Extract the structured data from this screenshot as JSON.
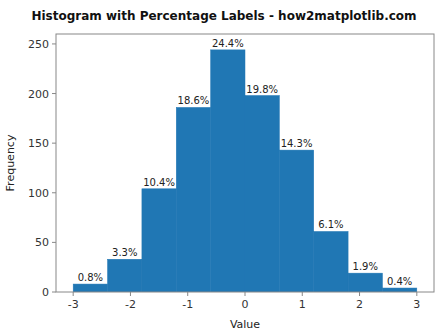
{
  "chart_data": {
    "type": "histogram",
    "title": "Histogram with Percentage Labels - how2matplotlib.com",
    "x_label": "Value",
    "y_label": "Frequency",
    "color": "#2077b4",
    "bins": [
      -3.0,
      -2.4,
      -1.8,
      -1.2,
      -0.6,
      0,
      0.6,
      1.2,
      1.8,
      2.4,
      3.0
    ],
    "values": [
      8,
      33,
      104,
      186,
      244,
      198,
      143,
      61,
      19,
      4
    ],
    "value_labels": [
      "0.8%",
      "3.3%",
      "10.4%",
      "18.6%",
      "24.4%",
      "19.8%",
      "14.3%",
      "6.1%",
      "1.9%",
      "0.4%"
    ],
    "data_labels": true,
    "xlim": [
      -3.3,
      3.3
    ],
    "ylim": [
      0,
      260
    ],
    "xticks": [
      -3,
      -2,
      -1,
      0,
      1,
      2,
      3
    ],
    "yticks": [
      0,
      50,
      100,
      150,
      200,
      250
    ],
    "grid": false
  }
}
